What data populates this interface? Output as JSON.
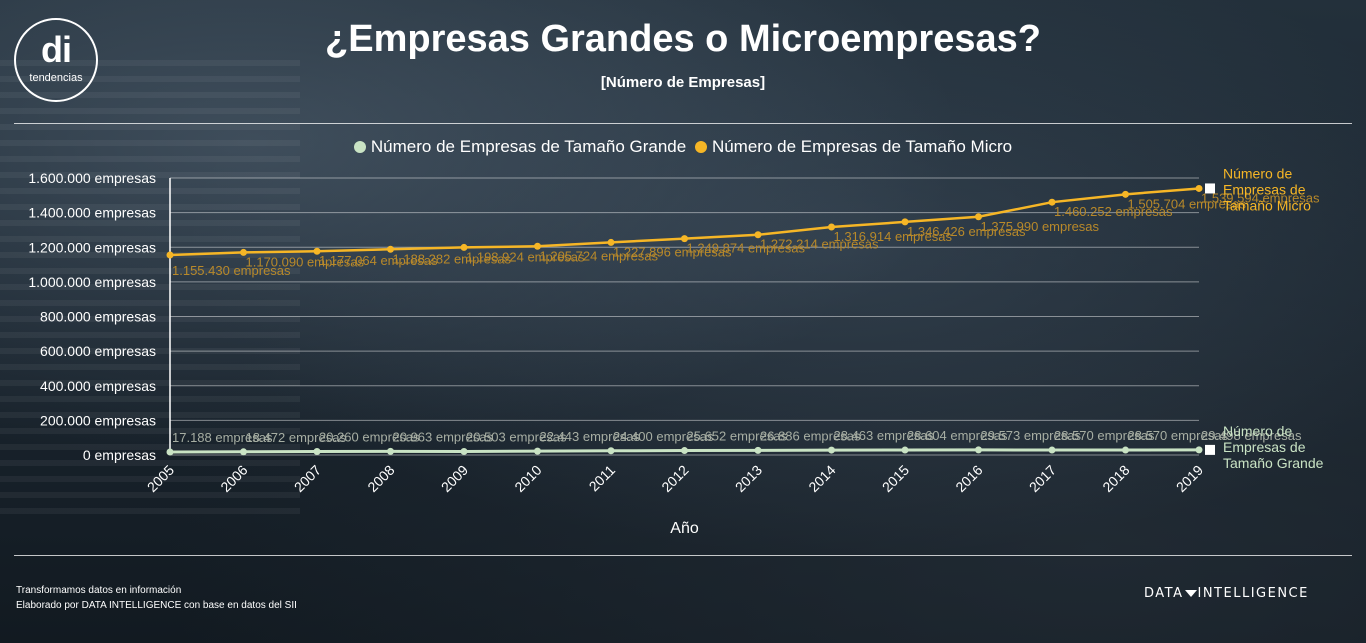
{
  "header": {
    "logo_mark": "di",
    "logo_text": "tendencias",
    "title": "¿Empresas Grandes o Microempresas?",
    "subtitle": "[Número de Empresas]"
  },
  "footer": {
    "line1": "Transformamos datos en información",
    "line2": "Elaborado por DATA INTELLIGENCE con base en datos del SII",
    "brand_left": "DATA",
    "brand_right": "INTELLIGENCE"
  },
  "chart_data": {
    "type": "line",
    "xlabel": "Año",
    "ylabel": "",
    "ylim": [
      0,
      1600000
    ],
    "yticks": [
      0,
      200000,
      400000,
      600000,
      800000,
      1000000,
      1200000,
      1400000,
      1600000
    ],
    "ytick_labels": [
      "0 empresas",
      "200.000 empresas",
      "400.000 empresas",
      "600.000 empresas",
      "800.000 empresas",
      "1.000.000 empresas",
      "1.200.000 empresas",
      "1.400.000 empresas",
      "1.600.000 empresas"
    ],
    "categories": [
      "2005",
      "2006",
      "2007",
      "2008",
      "2009",
      "2010",
      "2011",
      "2012",
      "2013",
      "2014",
      "2015",
      "2016",
      "2017",
      "2018",
      "2019"
    ],
    "grid": true,
    "legend_position": "top",
    "series": [
      {
        "name": "Número de Empresas de Tamaño Grande",
        "end_label": [
          "Número de",
          "Empresas de",
          "Tamaño Grande"
        ],
        "color": "#c9e3c4",
        "values": [
          17188,
          18472,
          20260,
          20963,
          20503,
          22443,
          24400,
          25652,
          26886,
          28463,
          28604,
          29573,
          28570,
          28570,
          29498
        ],
        "labels": [
          "17.188 empresas",
          "18.472 empresas",
          "20.260 empresas",
          "20.963 empresas",
          "20.503 empresas",
          "22.443 empresas",
          "24.400 empresas",
          "25.652 empresas",
          "26.886 empresas",
          "28.463 empresas",
          "28.604 empresas",
          "29.573 empresas",
          "28.570 empresas",
          "28.570 empresas",
          "29.498 empresas"
        ]
      },
      {
        "name": "Número de Empresas de Tamaño Micro",
        "end_label": [
          "Número de",
          "Empresas de",
          "Tamaño Micro"
        ],
        "color": "#f6b626",
        "values": [
          1155430,
          1170090,
          1177064,
          1188282,
          1198924,
          1205724,
          1227896,
          1249874,
          1272214,
          1316914,
          1346426,
          1375990,
          1460252,
          1505704,
          1539594
        ],
        "labels": [
          "1.155.430 empresas",
          "1.170.090 empresas",
          "1.177.064 empresas",
          "1.188.282 empresas",
          "1.198.924 empresas",
          "1.205.724 empresas",
          "1.227.896 empresas",
          "1.249.874 empresas",
          "1.272.214 empresas",
          "1.316.914 empresas",
          "1.346.426 empresas",
          "1.375.990 empresas",
          "1.460.252 empresas",
          "1.505.704 empresas",
          "1.539.594 empresas"
        ]
      }
    ]
  }
}
